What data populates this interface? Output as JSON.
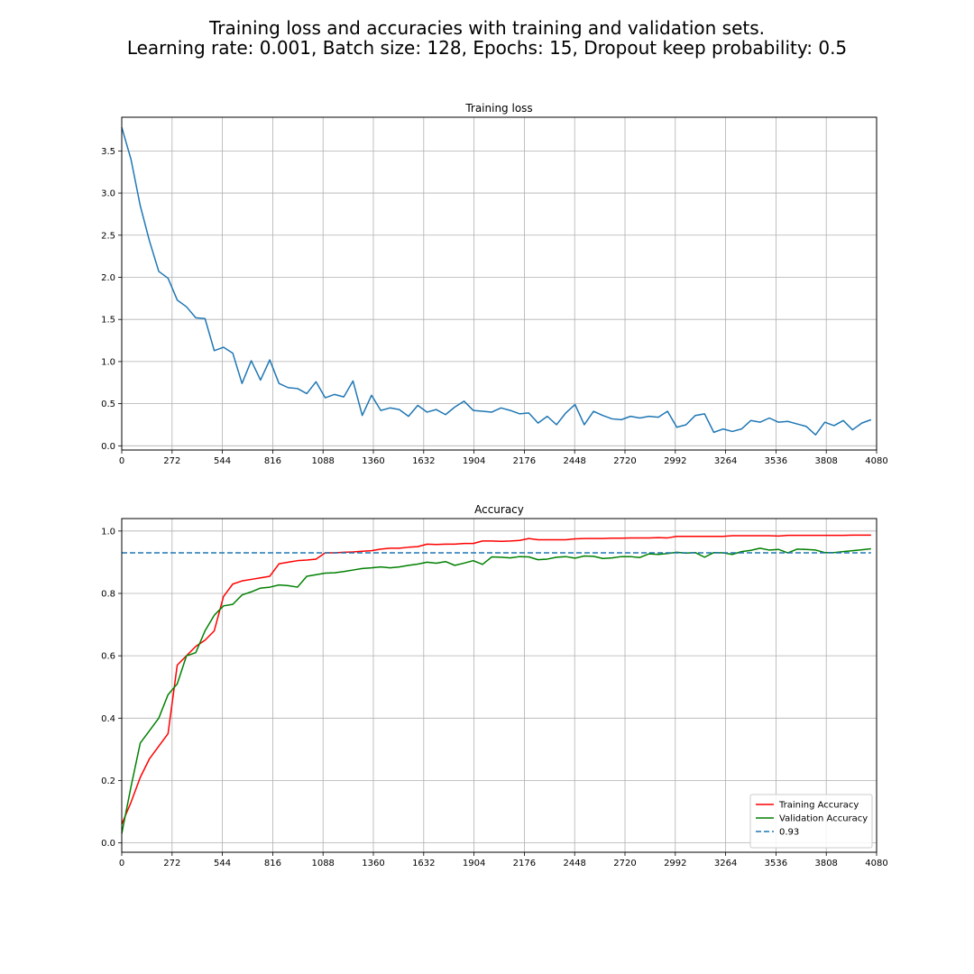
{
  "figure": {
    "title_line1": "Training loss and accuracies with training and validation sets.",
    "title_line2": "Learning rate: 0.001, Batch size: 128, Epochs: 15, Dropout keep probability: 0.5"
  },
  "chart_data": [
    {
      "type": "line",
      "title": "Training loss",
      "xlabel": "",
      "ylabel": "",
      "xlim": [
        0,
        4080
      ],
      "ylim": [
        -0.05,
        3.9
      ],
      "xticks": [
        0,
        272,
        544,
        816,
        1088,
        1360,
        1632,
        1904,
        2176,
        2448,
        2720,
        2992,
        3264,
        3536,
        3808,
        4080
      ],
      "yticks": [
        0.0,
        0.5,
        1.0,
        1.5,
        2.0,
        2.5,
        3.0,
        3.5
      ],
      "ytick_labels": [
        "0.0",
        "0.5",
        "1.0",
        "1.5",
        "2.0",
        "2.5",
        "3.0",
        "3.5"
      ],
      "grid": true,
      "series": [
        {
          "color": "#1f77b4",
          "x": [
            0,
            50,
            100,
            150,
            200,
            250,
            300,
            350,
            400,
            450,
            500,
            550,
            600,
            650,
            700,
            750,
            800,
            850,
            900,
            950,
            1000,
            1050,
            1100,
            1150,
            1200,
            1250,
            1300,
            1350,
            1400,
            1450,
            1500,
            1550,
            1600,
            1650,
            1700,
            1750,
            1800,
            1850,
            1900,
            1950,
            2000,
            2050,
            2100,
            2150,
            2200,
            2250,
            2300,
            2350,
            2400,
            2450,
            2500,
            2550,
            2600,
            2650,
            2700,
            2750,
            2800,
            2850,
            2900,
            2950,
            3000,
            3050,
            3100,
            3150,
            3200,
            3250,
            3300,
            3350,
            3400,
            3450,
            3500,
            3550,
            3600,
            3650,
            3700,
            3750,
            3800,
            3850,
            3900,
            3950,
            4000,
            4050
          ],
          "values": [
            3.78,
            3.4,
            2.85,
            2.43,
            2.07,
            1.99,
            1.73,
            1.65,
            1.52,
            1.51,
            1.13,
            1.17,
            1.1,
            0.74,
            1.01,
            0.78,
            1.02,
            0.74,
            0.69,
            0.68,
            0.62,
            0.76,
            0.57,
            0.61,
            0.58,
            0.77,
            0.36,
            0.6,
            0.42,
            0.45,
            0.43,
            0.35,
            0.48,
            0.4,
            0.43,
            0.37,
            0.46,
            0.53,
            0.42,
            0.41,
            0.4,
            0.45,
            0.42,
            0.38,
            0.39,
            0.27,
            0.35,
            0.25,
            0.39,
            0.49,
            0.25,
            0.41,
            0.36,
            0.32,
            0.31,
            0.35,
            0.33,
            0.35,
            0.34,
            0.41,
            0.22,
            0.25,
            0.36,
            0.38,
            0.16,
            0.2,
            0.17,
            0.2,
            0.3,
            0.28,
            0.33,
            0.28,
            0.29,
            0.26,
            0.23,
            0.13,
            0.28,
            0.24,
            0.3,
            0.19,
            0.27,
            0.31
          ]
        }
      ]
    },
    {
      "type": "line",
      "title": "Accuracy",
      "xlabel": "",
      "ylabel": "",
      "xlim": [
        0,
        4080
      ],
      "ylim": [
        -0.03,
        1.04
      ],
      "xticks": [
        0,
        272,
        544,
        816,
        1088,
        1360,
        1632,
        1904,
        2176,
        2448,
        2720,
        2992,
        3264,
        3536,
        3808,
        4080
      ],
      "yticks": [
        0.0,
        0.2,
        0.4,
        0.6,
        0.8,
        1.0
      ],
      "ytick_labels": [
        "0.0",
        "0.2",
        "0.4",
        "0.6",
        "0.8",
        "1.0"
      ],
      "grid": true,
      "legend_position": "lower-right",
      "series": [
        {
          "name": "Training Accuracy",
          "color": "#ff0000",
          "dashed": false,
          "x": [
            0,
            50,
            100,
            150,
            200,
            250,
            300,
            350,
            400,
            450,
            500,
            550,
            600,
            650,
            700,
            750,
            800,
            850,
            900,
            950,
            1000,
            1050,
            1100,
            1150,
            1200,
            1250,
            1300,
            1350,
            1400,
            1450,
            1500,
            1550,
            1600,
            1650,
            1700,
            1750,
            1800,
            1850,
            1900,
            1950,
            2000,
            2050,
            2100,
            2150,
            2200,
            2250,
            2300,
            2350,
            2400,
            2450,
            2500,
            2550,
            2600,
            2650,
            2700,
            2750,
            2800,
            2850,
            2900,
            2950,
            3000,
            3050,
            3100,
            3150,
            3200,
            3250,
            3300,
            3350,
            3400,
            3450,
            3500,
            3550,
            3600,
            3650,
            3700,
            3750,
            3800,
            3850,
            3900,
            3950,
            4000,
            4050
          ],
          "values": [
            0.06,
            0.13,
            0.21,
            0.27,
            0.31,
            0.35,
            0.57,
            0.6,
            0.63,
            0.65,
            0.68,
            0.79,
            0.83,
            0.84,
            0.845,
            0.85,
            0.855,
            0.895,
            0.9,
            0.905,
            0.907,
            0.91,
            0.93,
            0.93,
            0.932,
            0.933,
            0.935,
            0.937,
            0.942,
            0.945,
            0.945,
            0.948,
            0.95,
            0.958,
            0.957,
            0.958,
            0.958,
            0.96,
            0.96,
            0.968,
            0.968,
            0.967,
            0.968,
            0.97,
            0.976,
            0.972,
            0.972,
            0.972,
            0.972,
            0.975,
            0.976,
            0.976,
            0.976,
            0.977,
            0.977,
            0.978,
            0.978,
            0.978,
            0.979,
            0.978,
            0.983,
            0.983,
            0.983,
            0.983,
            0.983,
            0.983,
            0.985,
            0.985,
            0.985,
            0.985,
            0.985,
            0.984,
            0.986,
            0.986,
            0.986,
            0.986,
            0.986,
            0.986,
            0.986,
            0.987,
            0.987,
            0.987
          ]
        },
        {
          "name": "Validation Accuracy",
          "color": "#008000",
          "dashed": false,
          "x": [
            0,
            50,
            100,
            150,
            200,
            250,
            300,
            350,
            400,
            450,
            500,
            550,
            600,
            650,
            700,
            750,
            800,
            850,
            900,
            950,
            1000,
            1050,
            1100,
            1150,
            1200,
            1250,
            1300,
            1350,
            1400,
            1450,
            1500,
            1550,
            1600,
            1650,
            1700,
            1750,
            1800,
            1850,
            1900,
            1950,
            2000,
            2050,
            2100,
            2150,
            2200,
            2250,
            2300,
            2350,
            2400,
            2450,
            2500,
            2550,
            2600,
            2650,
            2700,
            2750,
            2800,
            2850,
            2900,
            2950,
            3000,
            3050,
            3100,
            3150,
            3200,
            3250,
            3300,
            3350,
            3400,
            3450,
            3500,
            3550,
            3600,
            3650,
            3700,
            3750,
            3800,
            3850,
            3900,
            3950,
            4000,
            4050
          ],
          "values": [
            0.03,
            0.18,
            0.32,
            0.36,
            0.4,
            0.475,
            0.51,
            0.6,
            0.61,
            0.68,
            0.73,
            0.76,
            0.765,
            0.795,
            0.805,
            0.817,
            0.82,
            0.827,
            0.825,
            0.82,
            0.855,
            0.86,
            0.865,
            0.866,
            0.87,
            0.875,
            0.88,
            0.882,
            0.885,
            0.882,
            0.885,
            0.89,
            0.894,
            0.9,
            0.897,
            0.902,
            0.89,
            0.897,
            0.905,
            0.893,
            0.917,
            0.916,
            0.914,
            0.918,
            0.917,
            0.908,
            0.91,
            0.916,
            0.918,
            0.913,
            0.92,
            0.919,
            0.912,
            0.914,
            0.918,
            0.918,
            0.915,
            0.927,
            0.925,
            0.928,
            0.932,
            0.929,
            0.931,
            0.916,
            0.931,
            0.93,
            0.925,
            0.934,
            0.938,
            0.945,
            0.939,
            0.941,
            0.93,
            0.942,
            0.941,
            0.939,
            0.931,
            0.931,
            0.934,
            0.937,
            0.94,
            0.943
          ]
        },
        {
          "name": "0.93",
          "color": "#1f77b4",
          "dashed": true,
          "x": [
            0,
            4050
          ],
          "values": [
            0.93,
            0.93
          ]
        }
      ]
    }
  ]
}
